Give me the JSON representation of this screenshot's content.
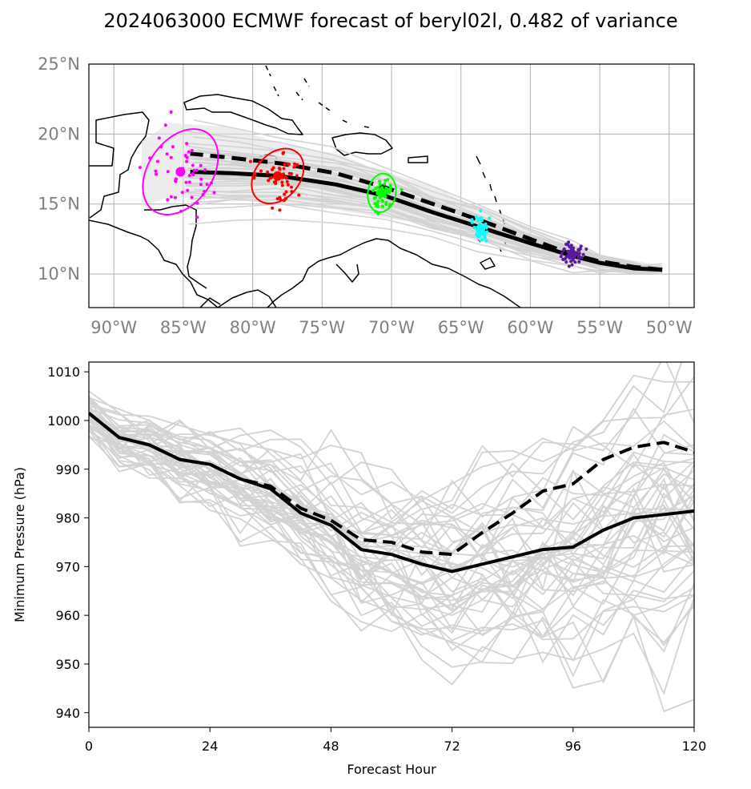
{
  "title": "2024063000 ECMWF forecast of beryl02l, 0.482 of variance",
  "chart_data": [
    {
      "type": "map-track",
      "lon_range": [
        -91.8,
        -48.2
      ],
      "lat_range": [
        7.6,
        25.0
      ],
      "lon_ticks": [
        {
          "value": -90,
          "label": "90°W"
        },
        {
          "value": -85,
          "label": "85°W"
        },
        {
          "value": -80,
          "label": "80°W"
        },
        {
          "value": -75,
          "label": "75°W"
        },
        {
          "value": -70,
          "label": "70°W"
        },
        {
          "value": -65,
          "label": "65°W"
        },
        {
          "value": -60,
          "label": "60°W"
        },
        {
          "value": -55,
          "label": "55°W"
        },
        {
          "value": -50,
          "label": "50°W"
        }
      ],
      "lat_ticks": [
        {
          "value": 10,
          "label": "10°N"
        },
        {
          "value": 15,
          "label": "15°N"
        },
        {
          "value": 20,
          "label": "20°N"
        },
        {
          "value": 25,
          "label": "25°N"
        }
      ],
      "grid": true,
      "mean_track": [
        [
          -50.5,
          10.3
        ],
        [
          -52.5,
          10.4
        ],
        [
          -55,
          10.8
        ],
        [
          -57,
          11.3
        ],
        [
          -60,
          12.2
        ],
        [
          -63.5,
          13.3
        ],
        [
          -67,
          14.4
        ],
        [
          -70.5,
          15.6
        ],
        [
          -74,
          16.4
        ],
        [
          -78,
          17.0
        ],
        [
          -81.5,
          17.2
        ],
        [
          -84.5,
          17.3
        ]
      ],
      "deterministic_track": [
        [
          -50.5,
          10.3
        ],
        [
          -52.5,
          10.5
        ],
        [
          -55,
          10.9
        ],
        [
          -57,
          11.4
        ],
        [
          -60,
          12.5
        ],
        [
          -63.5,
          13.8
        ],
        [
          -67,
          15.0
        ],
        [
          -70.5,
          16.2
        ],
        [
          -74,
          17.2
        ],
        [
          -78,
          17.9
        ],
        [
          -81.5,
          18.3
        ],
        [
          -84.5,
          18.6
        ]
      ],
      "ensemble_envelope": {
        "north": [
          [
            -50.5,
            10.6
          ],
          [
            -55,
            11.4
          ],
          [
            -60,
            13.3
          ],
          [
            -64,
            14.8
          ],
          [
            -67,
            16.3
          ],
          [
            -70.5,
            17.3
          ],
          [
            -74,
            18.6
          ],
          [
            -78,
            19.3
          ],
          [
            -81.5,
            20.5
          ],
          [
            -86,
            20.8
          ],
          [
            -88,
            19.5
          ]
        ],
        "south": [
          [
            -50.5,
            10.1
          ],
          [
            -55,
            10.5
          ],
          [
            -60,
            11.5
          ],
          [
            -64,
            12.4
          ],
          [
            -67,
            13.5
          ],
          [
            -70.5,
            14.0
          ],
          [
            -74,
            14.6
          ],
          [
            -78,
            15.0
          ],
          [
            -81.5,
            15.3
          ],
          [
            -86,
            15.5
          ],
          [
            -88,
            14.8
          ]
        ]
      },
      "clusters": [
        {
          "name": "",
          "color": "#ff00ff",
          "center": [
            -85.2,
            17.3
          ],
          "ellipse": {
            "rx": 2.3,
            "ry": 3.4,
            "angle": 35
          }
        },
        {
          "name": "",
          "color": "#ff0000",
          "center": [
            -78.2,
            17.0
          ],
          "ellipse": {
            "rx": 1.6,
            "ry": 2.2,
            "angle": 40
          }
        },
        {
          "name": "",
          "color": "#00ff00",
          "center": [
            -70.7,
            15.8
          ],
          "ellipse": {
            "rx": 1.0,
            "ry": 1.4,
            "angle": 10
          }
        },
        {
          "name": "",
          "color": "#00ffff",
          "center": [
            -63.6,
            13.2
          ],
          "ellipse": null
        },
        {
          "name": "",
          "color": "#5b1a9e",
          "center": [
            -57.0,
            11.4
          ],
          "ellipse": null
        }
      ]
    },
    {
      "type": "line",
      "xlabel": "Forecast Hour",
      "ylabel": "Minimum Pressure (hPa)",
      "xlim": [
        0,
        120
      ],
      "ylim": [
        937,
        1012
      ],
      "xticks": [
        0,
        24,
        48,
        72,
        96,
        120
      ],
      "yticks": [
        940,
        950,
        960,
        970,
        980,
        990,
        1000,
        1010
      ],
      "x": [
        0,
        6,
        12,
        18,
        24,
        30,
        36,
        42,
        48,
        54,
        60,
        66,
        72,
        78,
        84,
        90,
        96,
        102,
        108,
        114,
        120
      ],
      "series": [
        {
          "style": "mean",
          "color": "#000000",
          "values": [
            1001.5,
            996.5,
            995,
            992,
            991,
            988,
            986,
            981,
            978.5,
            973.5,
            972.5,
            970.5,
            969,
            970.5,
            972,
            973.5,
            974,
            977.5,
            980,
            980.7,
            981.4
          ]
        },
        {
          "style": "deterministic",
          "color": "#000000",
          "values": [
            1001.5,
            996.5,
            995,
            992,
            991,
            988,
            986.5,
            982,
            979.5,
            975.5,
            975,
            973,
            972.5,
            977,
            981,
            985.5,
            987,
            992,
            994.5,
            995.5,
            993.5
          ]
        }
      ],
      "ensemble_color": "#d3d3d3",
      "ensemble_count": 50
    }
  ]
}
